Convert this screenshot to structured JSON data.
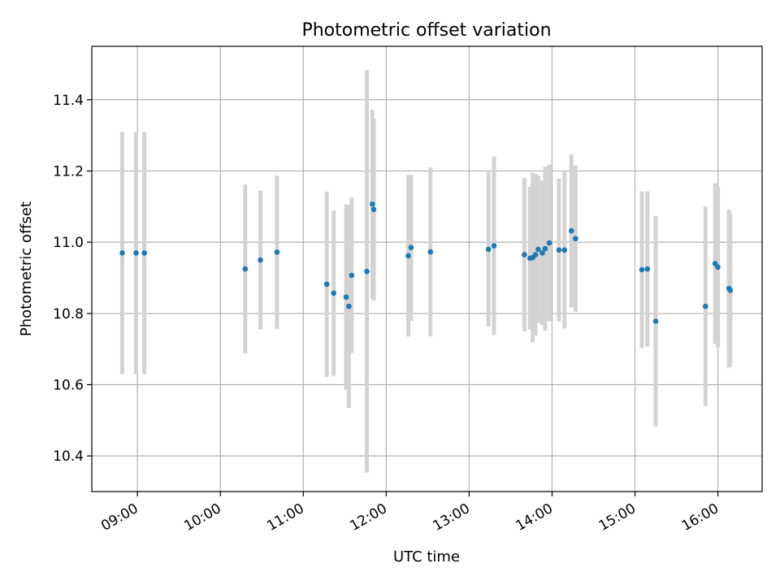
{
  "chart_data": {
    "type": "scatter",
    "title": "Photometric offset variation",
    "xlabel": "UTC time",
    "ylabel": "Photometric offset",
    "x_ticks": [
      "09:00",
      "10:00",
      "11:00",
      "12:00",
      "13:00",
      "14:00",
      "15:00",
      "16:00"
    ],
    "y_ticks": [
      "10.4",
      "10.6",
      "10.8",
      "11.0",
      "11.2",
      "11.4"
    ],
    "xlim": [
      "08:27",
      "16:32"
    ],
    "ylim": [
      10.3,
      11.55
    ],
    "grid": true,
    "legend": "none",
    "colors": {
      "points": "#1f77b4",
      "errorbars": "#d3d3d3",
      "grid": "#b0b0b0"
    },
    "points": [
      {
        "x": "08:49",
        "y": 10.97,
        "err": 0.34
      },
      {
        "x": "08:59",
        "y": 10.97,
        "err": 0.34
      },
      {
        "x": "09:05",
        "y": 10.97,
        "err": 0.34
      },
      {
        "x": "10:18",
        "y": 10.925,
        "err": 0.237
      },
      {
        "x": "10:29",
        "y": 10.95,
        "err": 0.195
      },
      {
        "x": "10:41",
        "y": 10.972,
        "err": 0.215
      },
      {
        "x": "11:17",
        "y": 10.882,
        "err": 0.26
      },
      {
        "x": "11:22",
        "y": 10.857,
        "err": 0.232
      },
      {
        "x": "11:31",
        "y": 10.846,
        "err": 0.26
      },
      {
        "x": "11:33",
        "y": 10.82,
        "err": 0.285
      },
      {
        "x": "11:35",
        "y": 10.907,
        "err": 0.218
      },
      {
        "x": "11:46",
        "y": 10.918,
        "err": 0.565
      },
      {
        "x": "11:50",
        "y": 11.107,
        "err": 0.265
      },
      {
        "x": "11:51",
        "y": 11.092,
        "err": 0.255
      },
      {
        "x": "12:16",
        "y": 10.962,
        "err": 0.227
      },
      {
        "x": "12:18",
        "y": 10.985,
        "err": 0.205
      },
      {
        "x": "12:32",
        "y": 10.973,
        "err": 0.237
      },
      {
        "x": "13:14",
        "y": 10.98,
        "err": 0.217
      },
      {
        "x": "13:18",
        "y": 10.99,
        "err": 0.251
      },
      {
        "x": "13:40",
        "y": 10.965,
        "err": 0.215
      },
      {
        "x": "13:44",
        "y": 10.955,
        "err": 0.2
      },
      {
        "x": "13:46",
        "y": 10.957,
        "err": 0.238
      },
      {
        "x": "13:48",
        "y": 10.965,
        "err": 0.227
      },
      {
        "x": "13:50",
        "y": 10.98,
        "err": 0.207
      },
      {
        "x": "13:53",
        "y": 10.97,
        "err": 0.203
      },
      {
        "x": "13:55",
        "y": 10.982,
        "err": 0.23
      },
      {
        "x": "13:58",
        "y": 10.998,
        "err": 0.22
      },
      {
        "x": "14:05",
        "y": 10.978,
        "err": 0.2
      },
      {
        "x": "14:09",
        "y": 10.978,
        "err": 0.22
      },
      {
        "x": "14:14",
        "y": 11.032,
        "err": 0.215
      },
      {
        "x": "14:17",
        "y": 11.01,
        "err": 0.205
      },
      {
        "x": "15:05",
        "y": 10.923,
        "err": 0.22
      },
      {
        "x": "15:09",
        "y": 10.925,
        "err": 0.218
      },
      {
        "x": "15:15",
        "y": 10.778,
        "err": 0.295
      },
      {
        "x": "15:51",
        "y": 10.82,
        "err": 0.28
      },
      {
        "x": "15:58",
        "y": 10.94,
        "err": 0.225
      },
      {
        "x": "16:00",
        "y": 10.93,
        "err": 0.225
      },
      {
        "x": "16:08",
        "y": 10.87,
        "err": 0.222
      },
      {
        "x": "16:09",
        "y": 10.865,
        "err": 0.215
      }
    ]
  }
}
